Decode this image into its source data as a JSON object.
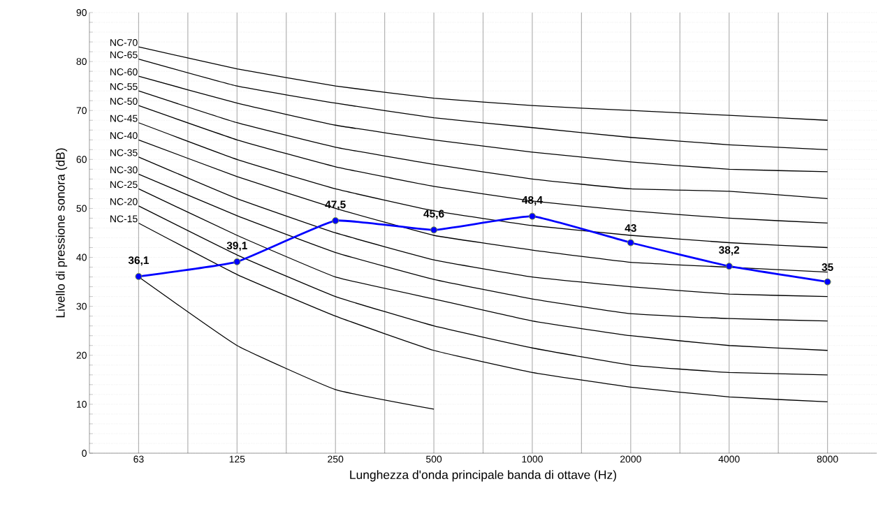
{
  "chart_data": {
    "type": "line",
    "xlabel": "Lunghezza d'onda principale banda di ottave (Hz)",
    "ylabel": "Livello di pressione sonora (dB)",
    "categories": [
      "63",
      "125",
      "250",
      "500",
      "1000",
      "2000",
      "4000",
      "8000"
    ],
    "ylim": [
      0,
      90
    ],
    "yticks": [
      0,
      10,
      20,
      30,
      40,
      50,
      60,
      70,
      80,
      90
    ],
    "grid": true,
    "line_style": "solid",
    "series": [
      {
        "name": "NC-70",
        "color": "#000000",
        "values": [
          83,
          78.5,
          75,
          72.5,
          71,
          70,
          69,
          68
        ]
      },
      {
        "name": "NC-65",
        "color": "#000000",
        "values": [
          80.5,
          75,
          71.5,
          68.5,
          66.5,
          64.5,
          63,
          62
        ]
      },
      {
        "name": "NC-60",
        "color": "#000000",
        "values": [
          77,
          71.5,
          67,
          64,
          61.5,
          59.5,
          58,
          57.5
        ]
      },
      {
        "name": "NC-55",
        "color": "#000000",
        "values": [
          74,
          67.5,
          62.5,
          59,
          56,
          54,
          53.5,
          52
        ]
      },
      {
        "name": "NC-50",
        "color": "#000000",
        "values": [
          71,
          64,
          58.5,
          54.5,
          51.5,
          49.5,
          48,
          47
        ]
      },
      {
        "name": "NC-45",
        "color": "#000000",
        "values": [
          67.5,
          60,
          54,
          49.5,
          46.5,
          44.5,
          43,
          42
        ]
      },
      {
        "name": "NC-40",
        "color": "#000000",
        "values": [
          64,
          56.5,
          50,
          44.5,
          41.5,
          39,
          38,
          37
        ]
      },
      {
        "name": "NC-35",
        "color": "#000000",
        "values": [
          60.5,
          52,
          45,
          39.5,
          36,
          34,
          32.5,
          32
        ]
      },
      {
        "name": "NC-30",
        "color": "#000000",
        "values": [
          57,
          48.5,
          41,
          35.5,
          31.5,
          28.5,
          27.5,
          27
        ]
      },
      {
        "name": "NC-25",
        "color": "#000000",
        "values": [
          54,
          44.5,
          36,
          31.5,
          27,
          24,
          22,
          21
        ]
      },
      {
        "name": "NC-20",
        "color": "#000000",
        "values": [
          50.5,
          40.5,
          32,
          26,
          21.5,
          18,
          16.5,
          16
        ]
      },
      {
        "name": "NC-15",
        "color": "#000000",
        "values": [
          47,
          36.5,
          28,
          21,
          16.5,
          13.5,
          11.5,
          10.5
        ]
      },
      {
        "color": "#000000",
        "values": [
          36,
          22,
          13,
          9,
          null,
          null,
          null,
          null
        ]
      },
      {
        "color": "#0000ff",
        "marker": "circle",
        "values": [
          36.1,
          39.1,
          47.5,
          45.6,
          48.4,
          43,
          38.2,
          35
        ],
        "value_labels": [
          "36,1",
          "39,1",
          "47,5",
          "45,6",
          "48,4",
          "43",
          "38,2",
          "35"
        ]
      }
    ]
  }
}
